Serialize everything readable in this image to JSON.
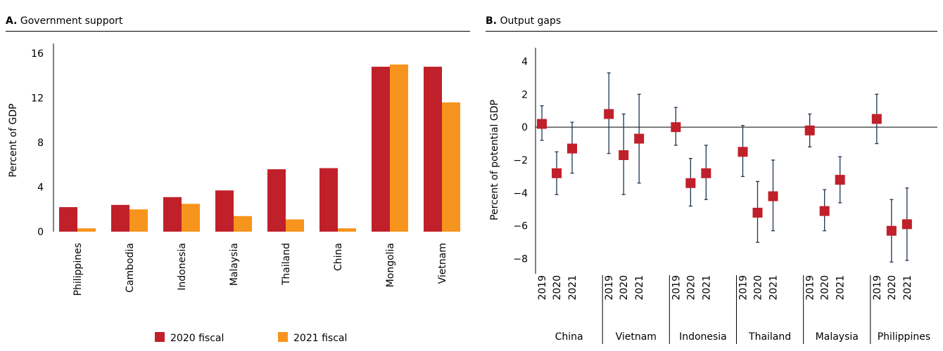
{
  "panel_a": {
    "letter": "A.",
    "title": "Government support"
  },
  "panel_b": {
    "letter": "B.",
    "title": "Output gaps"
  },
  "chart_data": [
    {
      "type": "bar",
      "title": "Government support",
      "ylabel": "Percent of GDP",
      "ylim": [
        0,
        16
      ],
      "yticks": [
        0,
        4,
        8,
        12,
        16
      ],
      "categories": [
        "Philippines",
        "Cambodia",
        "Indonesia",
        "Malaysia",
        "Thailand",
        "China",
        "Mongolia",
        "Vietnam"
      ],
      "series": [
        {
          "name": "2020 fiscal",
          "color": "#c0202a",
          "values": [
            2.2,
            2.4,
            3.1,
            3.7,
            5.6,
            5.7,
            14.8,
            14.8
          ]
        },
        {
          "name": "2021 fiscal",
          "color": "#f7941d",
          "values": [
            0.3,
            2.0,
            2.5,
            1.4,
            1.1,
            0.3,
            15.0,
            11.6
          ]
        }
      ],
      "legend": "bottom"
    },
    {
      "type": "scatter",
      "title": "Output gaps",
      "ylabel": "Percent of potential GDP",
      "ylim": [
        -9,
        5
      ],
      "yticks": [
        -8,
        -6,
        -4,
        -2,
        0,
        2,
        4
      ],
      "marker_color": "#c0202a",
      "errorbar_color": "#1f3552",
      "groups": [
        {
          "name": "China",
          "points": [
            {
              "year": "2019",
              "value": 0.2,
              "low": -0.8,
              "high": 1.3
            },
            {
              "year": "2020",
              "value": -2.8,
              "low": -4.1,
              "high": -1.5
            },
            {
              "year": "2021",
              "value": -1.3,
              "low": -2.8,
              "high": 0.3
            }
          ]
        },
        {
          "name": "Vietnam",
          "points": [
            {
              "year": "2019",
              "value": 0.8,
              "low": -1.6,
              "high": 3.3
            },
            {
              "year": "2020",
              "value": -1.7,
              "low": -4.1,
              "high": 0.8
            },
            {
              "year": "2021",
              "value": -0.7,
              "low": -3.4,
              "high": 2.0
            }
          ]
        },
        {
          "name": "Indonesia",
          "points": [
            {
              "year": "2019",
              "value": 0.0,
              "low": -1.1,
              "high": 1.2
            },
            {
              "year": "2020",
              "value": -3.4,
              "low": -4.8,
              "high": -1.9
            },
            {
              "year": "2021",
              "value": -2.8,
              "low": -4.4,
              "high": -1.1
            }
          ]
        },
        {
          "name": "Thailand",
          "points": [
            {
              "year": "2019",
              "value": -1.5,
              "low": -3.0,
              "high": 0.1
            },
            {
              "year": "2020",
              "value": -5.2,
              "low": -7.0,
              "high": -3.3
            },
            {
              "year": "2021",
              "value": -4.2,
              "low": -6.3,
              "high": -2.0
            }
          ]
        },
        {
          "name": "Malaysia",
          "points": [
            {
              "year": "2019",
              "value": -0.2,
              "low": -1.2,
              "high": 0.8
            },
            {
              "year": "2020",
              "value": -5.1,
              "low": -6.3,
              "high": -3.8
            },
            {
              "year": "2021",
              "value": -3.2,
              "low": -4.6,
              "high": -1.8
            }
          ]
        },
        {
          "name": "Philippines",
          "points": [
            {
              "year": "2019",
              "value": 0.5,
              "low": -1.0,
              "high": 2.0
            },
            {
              "year": "2020",
              "value": -6.3,
              "low": -8.2,
              "high": -4.4
            },
            {
              "year": "2021",
              "value": -5.9,
              "low": -8.1,
              "high": -3.7
            }
          ]
        }
      ]
    }
  ]
}
